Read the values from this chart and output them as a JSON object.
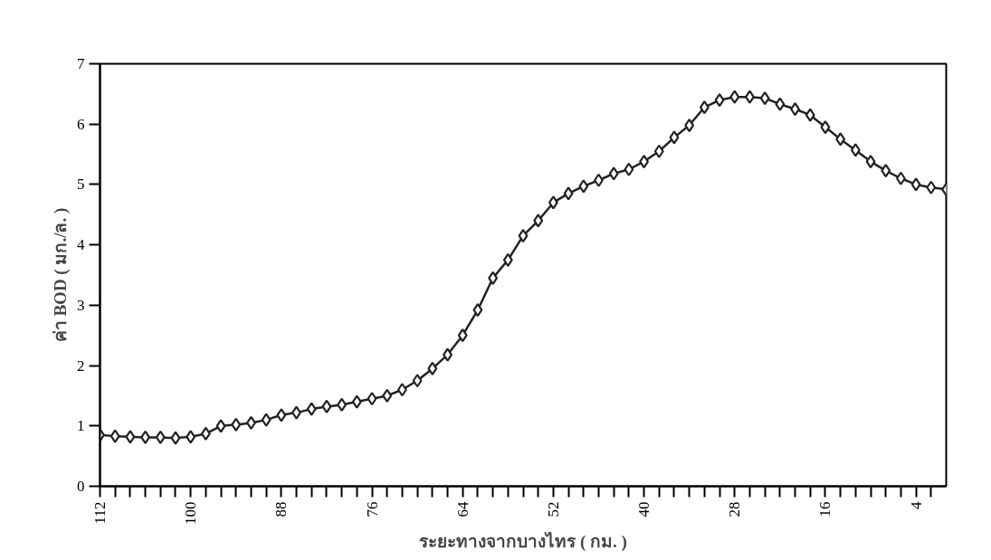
{
  "chart_data": {
    "type": "line",
    "xlabel": "ระยะทางจากบางไทร ( กม. )",
    "ylabel": "ค่า BOD ( มก./ล. )",
    "x": [
      112,
      110,
      108,
      106,
      104,
      102,
      100,
      98,
      96,
      94,
      92,
      90,
      88,
      86,
      84,
      82,
      80,
      78,
      76,
      74,
      72,
      70,
      68,
      66,
      64,
      62,
      60,
      58,
      56,
      54,
      52,
      50,
      48,
      46,
      44,
      42,
      40,
      38,
      36,
      34,
      32,
      30,
      28,
      26,
      24,
      22,
      20,
      18,
      16,
      14,
      12,
      10,
      8,
      6,
      4,
      2,
      0
    ],
    "series": [
      {
        "color": "#222222",
        "values": [
          0.85,
          0.83,
          0.82,
          0.81,
          0.81,
          0.8,
          0.82,
          0.87,
          1.0,
          1.02,
          1.05,
          1.1,
          1.18,
          1.22,
          1.28,
          1.32,
          1.35,
          1.4,
          1.45,
          1.5,
          1.6,
          1.75,
          1.95,
          2.18,
          2.5,
          2.92,
          3.45,
          3.75,
          4.15,
          4.4,
          4.7,
          4.85,
          4.97,
          5.07,
          5.18,
          5.25,
          5.38,
          5.55,
          5.78,
          5.98,
          6.28,
          6.4,
          6.45,
          6.45,
          6.43,
          6.33,
          6.25,
          6.15,
          5.95,
          5.75,
          5.57,
          5.38,
          5.23,
          5.1,
          5.0,
          4.95,
          4.92
        ]
      }
    ],
    "xlim": [
      112,
      0
    ],
    "ylim": [
      0,
      7
    ],
    "yticks": [
      0,
      1,
      2,
      3,
      4,
      5,
      6,
      7
    ],
    "xticks": [
      112,
      {
        "value": 110,
        "label": null
      },
      {
        "value": 108,
        "label": null
      },
      {
        "value": 106,
        "label": null
      },
      {
        "value": 104,
        "label": null
      },
      {
        "value": 102,
        "label": null
      },
      100,
      {
        "value": 98,
        "label": null
      },
      {
        "value": 96,
        "label": null
      },
      {
        "value": 94,
        "label": null
      },
      {
        "value": 92,
        "label": null
      },
      {
        "value": 90,
        "label": null
      },
      88,
      {
        "value": 86,
        "label": null
      },
      {
        "value": 84,
        "label": null
      },
      {
        "value": 82,
        "label": null
      },
      {
        "value": 80,
        "label": null
      },
      {
        "value": 78,
        "label": null
      },
      76,
      {
        "value": 74,
        "label": null
      },
      {
        "value": 72,
        "label": null
      },
      {
        "value": 70,
        "label": null
      },
      {
        "value": 68,
        "label": null
      },
      {
        "value": 66,
        "label": null
      },
      64,
      {
        "value": 62,
        "label": null
      },
      {
        "value": 60,
        "label": null
      },
      {
        "value": 58,
        "label": null
      },
      {
        "value": 56,
        "label": null
      },
      {
        "value": 54,
        "label": null
      },
      52,
      {
        "value": 50,
        "label": null
      },
      {
        "value": 48,
        "label": null
      },
      {
        "value": 46,
        "label": null
      },
      {
        "value": 44,
        "label": null
      },
      {
        "value": 42,
        "label": null
      },
      40,
      {
        "value": 38,
        "label": null
      },
      {
        "value": 36,
        "label": null
      },
      {
        "value": 34,
        "label": null
      },
      {
        "value": 32,
        "label": null
      },
      {
        "value": 30,
        "label": null
      },
      28,
      {
        "value": 26,
        "label": null
      },
      {
        "value": 24,
        "label": null
      },
      {
        "value": 22,
        "label": null
      },
      {
        "value": 20,
        "label": null
      },
      {
        "value": 18,
        "label": null
      },
      16,
      {
        "value": 14,
        "label": null
      },
      {
        "value": 12,
        "label": null
      },
      {
        "value": 10,
        "label": null
      },
      {
        "value": 8,
        "label": null
      },
      {
        "value": 6,
        "label": null
      },
      4,
      {
        "value": 2,
        "label": null
      }
    ],
    "marker": "diamond",
    "line_style": "solid",
    "grid": false
  }
}
